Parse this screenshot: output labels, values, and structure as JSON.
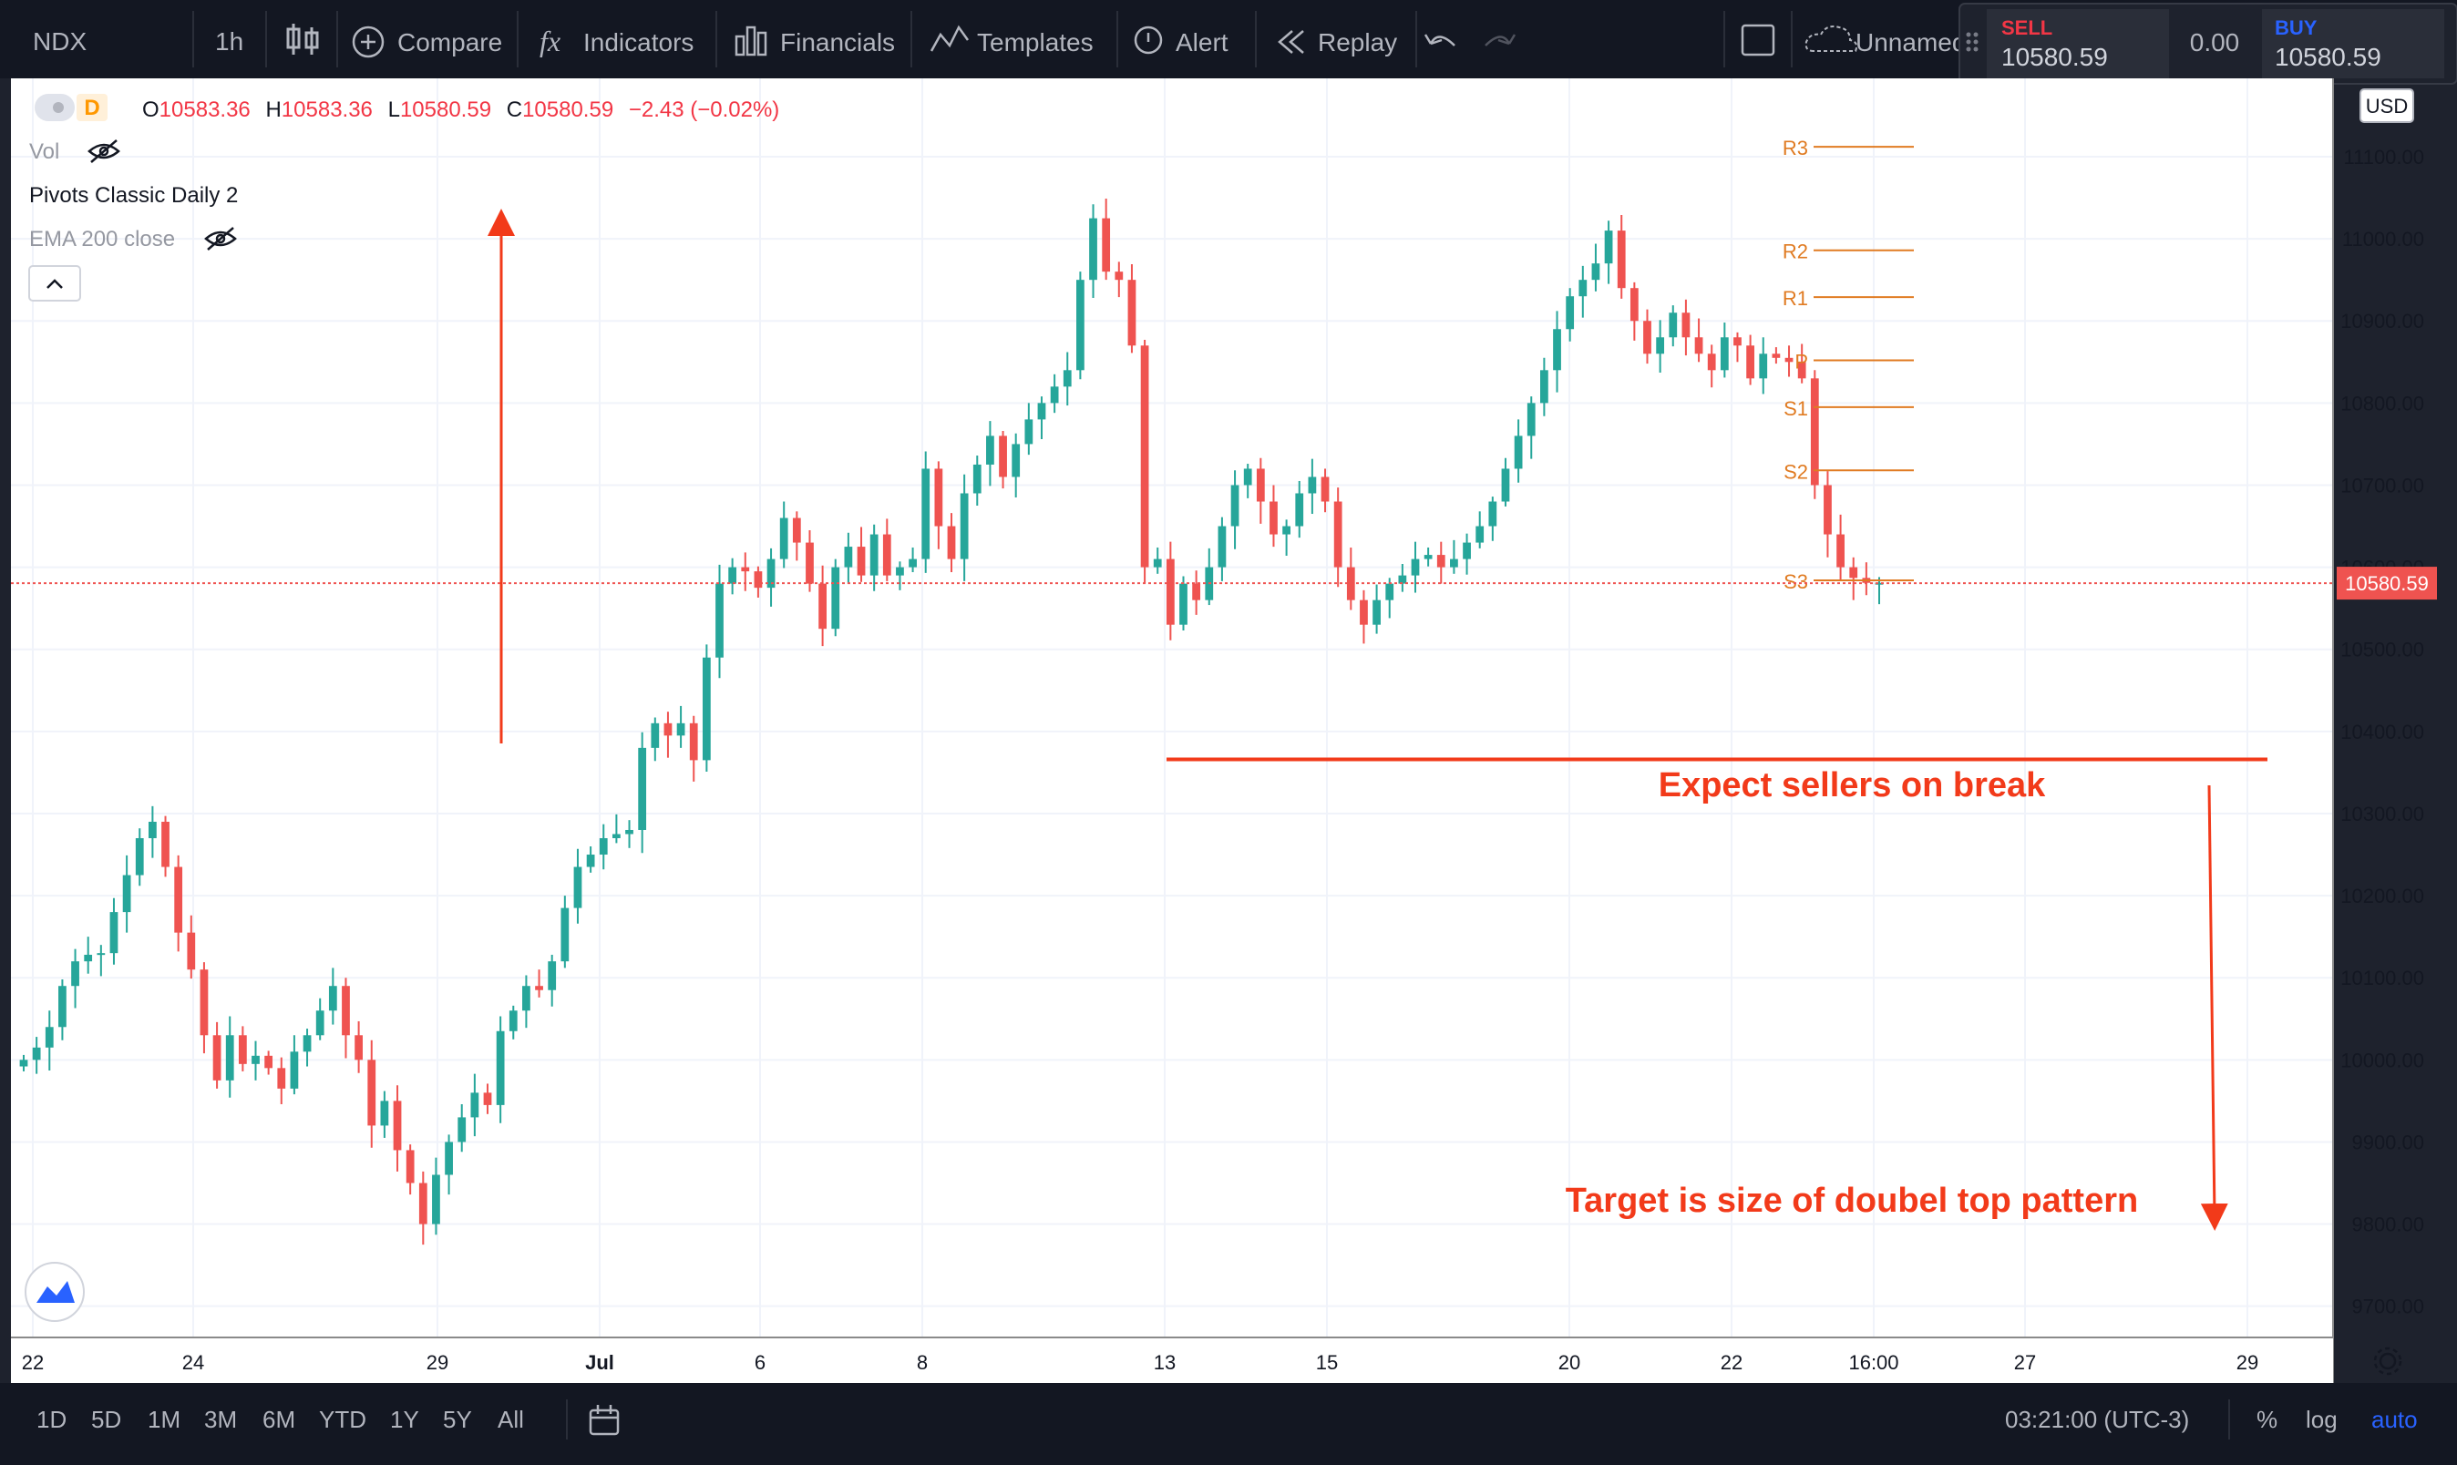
{
  "toolbar": {
    "symbol": "NDX",
    "interval": "1h",
    "compare": "Compare",
    "indicators": "Indicators",
    "financials": "Financials",
    "templates": "Templates",
    "alert": "Alert",
    "replay": "Replay",
    "layout_name": "Unnamed"
  },
  "trade": {
    "sell_label": "SELL",
    "sell_price": "10580.59",
    "spread": "0.00",
    "buy_label": "BUY",
    "buy_price": "10580.59"
  },
  "legend": {
    "badge": "D",
    "o_label": "O",
    "o": "10583.36",
    "h_label": "H",
    "h": "10583.36",
    "l_label": "L",
    "l": "10580.59",
    "c_label": "C",
    "c": "10580.59",
    "change": "−2.43 (−0.02%)",
    "vol": "Vol",
    "pivots": "Pivots Classic Daily 2",
    "ema": "EMA 200 close"
  },
  "currency": "USD",
  "last_price_label": "10580.59",
  "bottom_bar": {
    "ranges": [
      "1D",
      "5D",
      "1M",
      "3M",
      "6M",
      "YTD",
      "1Y",
      "5Y",
      "All"
    ],
    "clock": "03:21:00 (UTC-3)",
    "percent": "%",
    "log": "log",
    "auto": "auto"
  },
  "colors": {
    "up": "#26a69a",
    "down": "#ef5350",
    "pivot": "#e07b22",
    "annotation": "#f23a1a",
    "price_line": "#ef5350",
    "auto_active": "#2962ff"
  },
  "chart_data": {
    "type": "candlestick",
    "symbol": "NDX",
    "ylim": [
      9650,
      11170
    ],
    "y_ticks": [
      "11100.00",
      "11000.00",
      "10900.00",
      "10800.00",
      "10700.00",
      "10600.00",
      "10500.00",
      "10400.00",
      "10300.00",
      "10200.00",
      "10100.00",
      "10000.00",
      "9900.00",
      "9800.00",
      "9700.00"
    ],
    "x_ticks": [
      "22",
      "24",
      "29",
      "Jul",
      "6",
      "8",
      "13",
      "15",
      "20",
      "22",
      "16:00",
      "27",
      "29"
    ],
    "last_price": 10580.59,
    "pivots": [
      {
        "label": "R3",
        "value": 11112
      },
      {
        "label": "R2",
        "value": 10986
      },
      {
        "label": "R1",
        "value": 10929
      },
      {
        "label": "P",
        "value": 10852
      },
      {
        "label": "S1",
        "value": 10795
      },
      {
        "label": "S2",
        "value": 10718
      },
      {
        "label": "S3",
        "value": 10584
      }
    ],
    "support_level": 10366,
    "annotations": [
      "Expect sellers on break",
      "Target is size of doubel top pattern"
    ],
    "closes": [
      10000,
      10015,
      10040,
      10090,
      10120,
      10128,
      10130,
      10180,
      10225,
      10270,
      10290,
      10235,
      10155,
      10110,
      10030,
      9975,
      10030,
      9995,
      10005,
      9990,
      9965,
      10010,
      10030,
      10060,
      10090,
      10030,
      10000,
      9920,
      9950,
      9890,
      9850,
      9800,
      9860,
      9900,
      9930,
      9960,
      9945,
      10035,
      10060,
      10090,
      10085,
      10120,
      10185,
      10235,
      10250,
      10270,
      10275,
      10280,
      10380,
      10410,
      10395,
      10410,
      10365,
      10490,
      10580,
      10600,
      10595,
      10575,
      10610,
      10660,
      10630,
      10580,
      10525,
      10600,
      10625,
      10590,
      10640,
      10590,
      10600,
      10610,
      10720,
      10650,
      10610,
      10690,
      10725,
      10760,
      10710,
      10750,
      10780,
      10800,
      10820,
      10840,
      10950,
      11025,
      10960,
      10950,
      10870,
      10600,
      10610,
      10530,
      10580,
      10560,
      10600,
      10650,
      10700,
      10720,
      10680,
      10640,
      10650,
      10690,
      10710,
      10680,
      10600,
      10560,
      10530,
      10560,
      10580,
      10590,
      10610,
      10615,
      10600,
      10610,
      10630,
      10650,
      10680,
      10720,
      10760,
      10800,
      10840,
      10890,
      10930,
      10950,
      10970,
      11010,
      10940,
      10900,
      10860,
      10880,
      10910,
      10880,
      10860,
      10840,
      10880,
      10870,
      10830,
      10860,
      10855,
      10850,
      10830,
      10700,
      10640,
      10600,
      10587,
      10581,
      10581
    ]
  }
}
